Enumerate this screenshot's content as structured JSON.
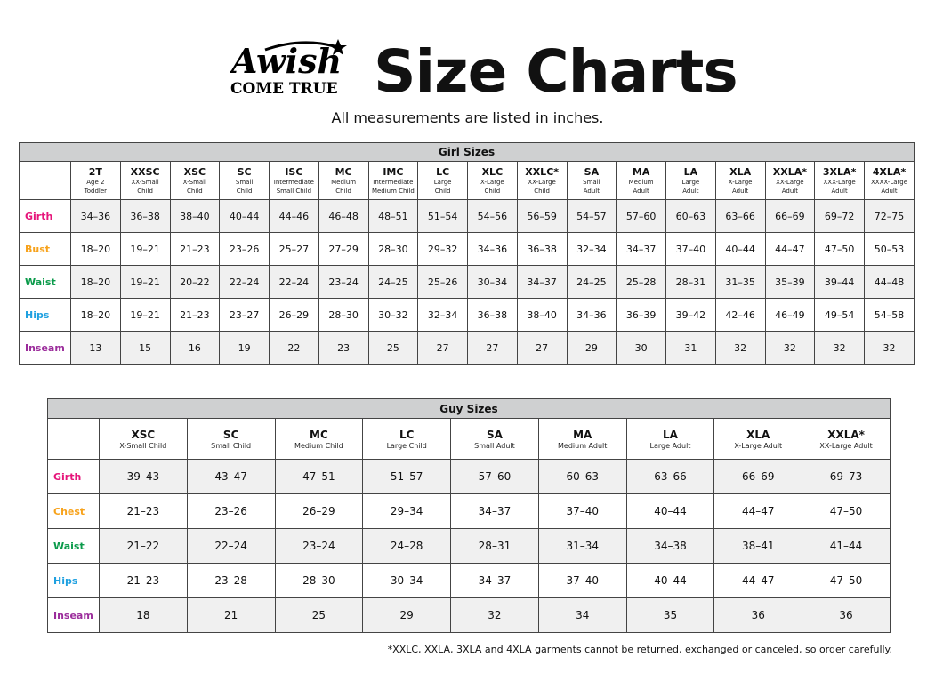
{
  "brand": {
    "logo_text": "A Wish Come True"
  },
  "header": {
    "title": "Size Charts",
    "subtitle": "All measurements are listed in inches."
  },
  "colors": {
    "Girth": "#e6147a",
    "Bust": "#f7a21b",
    "Chest": "#f7a21b",
    "Waist": "#0a9a4a",
    "Hips": "#1ea0e0",
    "Inseam": "#9b2c9b",
    "caption_bg": "#cfd0d1",
    "row_gray": "#f0f0f0"
  },
  "girl": {
    "caption": "Girl Sizes",
    "sizes": [
      {
        "code": "2T",
        "desc": [
          "Age 2",
          "Toddler"
        ]
      },
      {
        "code": "XXSC",
        "desc": [
          "XX-Small",
          "Child"
        ]
      },
      {
        "code": "XSC",
        "desc": [
          "X-Small",
          "Child"
        ]
      },
      {
        "code": "SC",
        "desc": [
          "Small",
          "Child"
        ]
      },
      {
        "code": "ISC",
        "desc": [
          "Intermediate",
          "Small Child"
        ]
      },
      {
        "code": "MC",
        "desc": [
          "Medium",
          "Child"
        ]
      },
      {
        "code": "IMC",
        "desc": [
          "Intermediate",
          "Medium Child"
        ]
      },
      {
        "code": "LC",
        "desc": [
          "Large",
          "Child"
        ]
      },
      {
        "code": "XLC",
        "desc": [
          "X-Large",
          "Child"
        ]
      },
      {
        "code": "XXLC*",
        "desc": [
          "XX-Large",
          "Child"
        ]
      },
      {
        "code": "SA",
        "desc": [
          "Small",
          "Adult"
        ]
      },
      {
        "code": "MA",
        "desc": [
          "Medium",
          "Adult"
        ]
      },
      {
        "code": "LA",
        "desc": [
          "Large",
          "Adult"
        ]
      },
      {
        "code": "XLA",
        "desc": [
          "X-Large",
          "Adult"
        ]
      },
      {
        "code": "XXLA*",
        "desc": [
          "XX-Large",
          "Adult"
        ]
      },
      {
        "code": "3XLA*",
        "desc": [
          "XXX-Large",
          "Adult"
        ]
      },
      {
        "code": "4XLA*",
        "desc": [
          "XXXX-Large",
          "Adult"
        ]
      }
    ],
    "rows": [
      {
        "label": "Girth",
        "values": [
          "34–36",
          "36–38",
          "38–40",
          "40–44",
          "44–46",
          "46–48",
          "48–51",
          "51–54",
          "54–56",
          "56–59",
          "54–57",
          "57–60",
          "60–63",
          "63–66",
          "66–69",
          "69–72",
          "72–75"
        ]
      },
      {
        "label": "Bust",
        "values": [
          "18–20",
          "19–21",
          "21–23",
          "23–26",
          "25–27",
          "27–29",
          "28–30",
          "29–32",
          "34–36",
          "36–38",
          "32–34",
          "34–37",
          "37–40",
          "40–44",
          "44–47",
          "47–50",
          "50–53"
        ]
      },
      {
        "label": "Waist",
        "values": [
          "18–20",
          "19–21",
          "20–22",
          "22–24",
          "22–24",
          "23–24",
          "24–25",
          "25–26",
          "30–34",
          "34–37",
          "24–25",
          "25–28",
          "28–31",
          "31–35",
          "35–39",
          "39–44",
          "44–48"
        ]
      },
      {
        "label": "Hips",
        "values": [
          "18–20",
          "19–21",
          "21–23",
          "23–27",
          "26–29",
          "28–30",
          "30–32",
          "32–34",
          "36–38",
          "38–40",
          "34–36",
          "36–39",
          "39–42",
          "42–46",
          "46–49",
          "49–54",
          "54–58"
        ]
      },
      {
        "label": "Inseam",
        "values": [
          "13",
          "15",
          "16",
          "19",
          "22",
          "23",
          "25",
          "27",
          "27",
          "27",
          "29",
          "30",
          "31",
          "32",
          "32",
          "32",
          "32"
        ]
      }
    ]
  },
  "guy": {
    "caption": "Guy Sizes",
    "sizes": [
      {
        "code": "XSC",
        "desc": [
          "X-Small Child"
        ]
      },
      {
        "code": "SC",
        "desc": [
          "Small Child"
        ]
      },
      {
        "code": "MC",
        "desc": [
          "Medium Child"
        ]
      },
      {
        "code": "LC",
        "desc": [
          "Large Child"
        ]
      },
      {
        "code": "SA",
        "desc": [
          "Small Adult"
        ]
      },
      {
        "code": "MA",
        "desc": [
          "Medium Adult"
        ]
      },
      {
        "code": "LA",
        "desc": [
          "Large Adult"
        ]
      },
      {
        "code": "XLA",
        "desc": [
          "X-Large Adult"
        ]
      },
      {
        "code": "XXLA*",
        "desc": [
          "XX-Large Adult"
        ]
      }
    ],
    "rows": [
      {
        "label": "Girth",
        "values": [
          "39–43",
          "43–47",
          "47–51",
          "51–57",
          "57–60",
          "60–63",
          "63–66",
          "66–69",
          "69–73"
        ]
      },
      {
        "label": "Chest",
        "values": [
          "21–23",
          "23–26",
          "26–29",
          "29–34",
          "34–37",
          "37–40",
          "40–44",
          "44–47",
          "47–50"
        ]
      },
      {
        "label": "Waist",
        "values": [
          "21–22",
          "22–24",
          "23–24",
          "24–28",
          "28–31",
          "31–34",
          "34–38",
          "38–41",
          "41–44"
        ]
      },
      {
        "label": "Hips",
        "values": [
          "21–23",
          "23–28",
          "28–30",
          "30–34",
          "34–37",
          "37–40",
          "40–44",
          "44–47",
          "47–50"
        ]
      },
      {
        "label": "Inseam",
        "values": [
          "18",
          "21",
          "25",
          "29",
          "32",
          "34",
          "35",
          "36",
          "36"
        ]
      }
    ]
  },
  "footnote": "*XXLC, XXLA, 3XLA and 4XLA garments cannot be returned, exchanged or canceled, so order carefully."
}
